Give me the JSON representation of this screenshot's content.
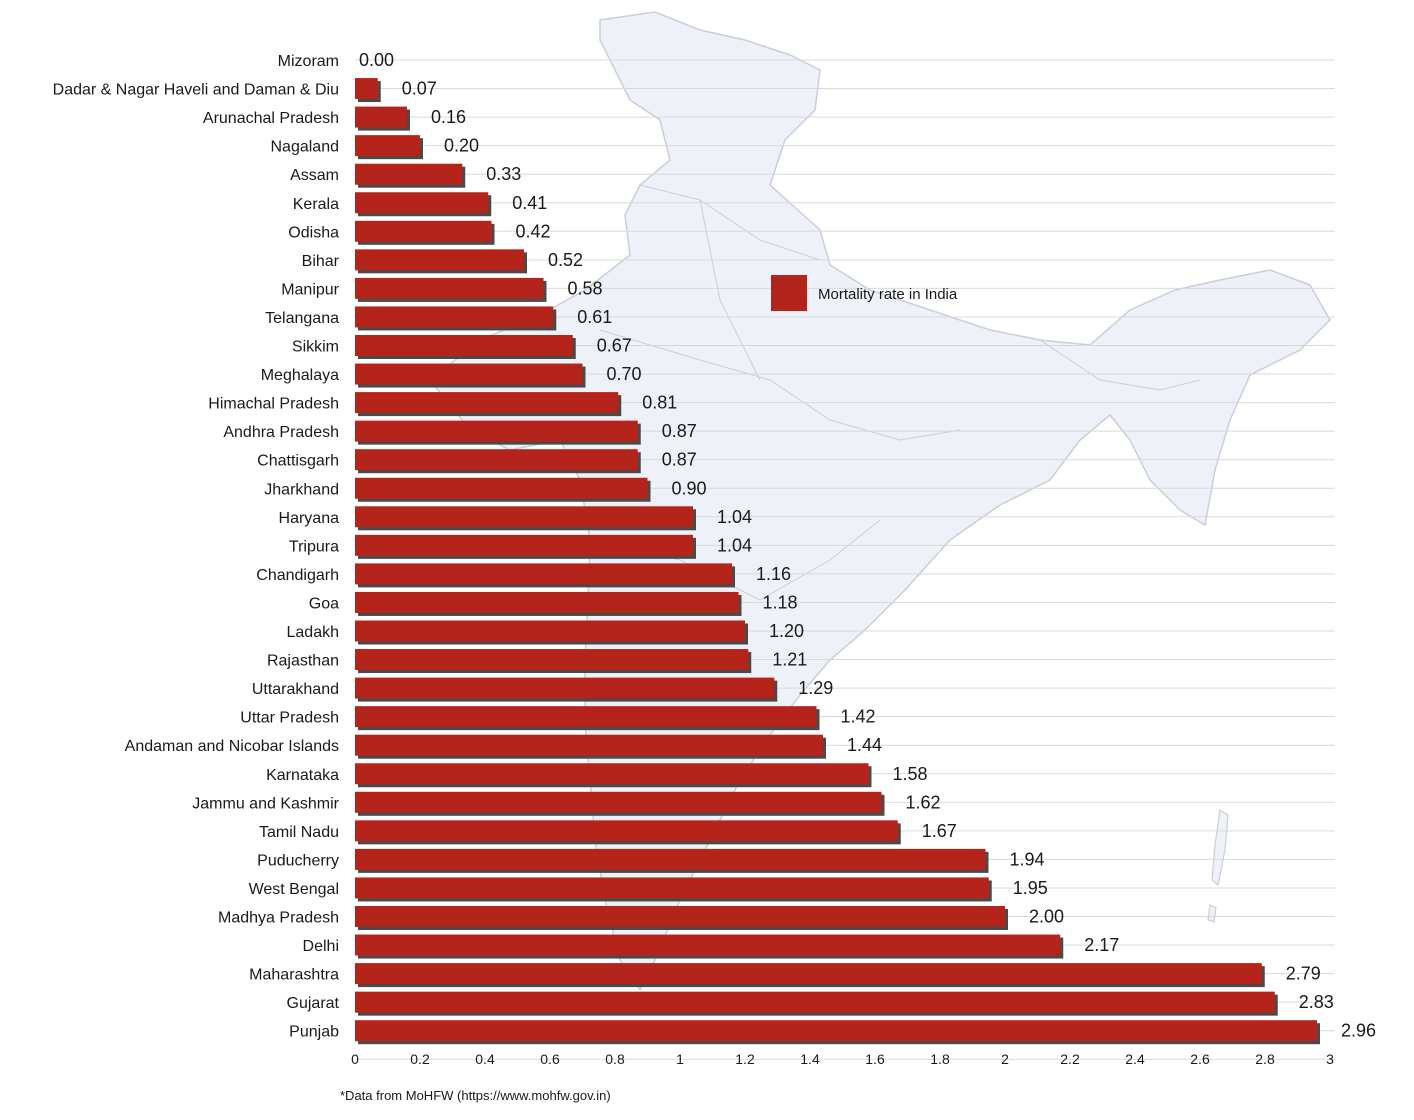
{
  "chart_data": {
    "type": "bar",
    "orientation": "horizontal",
    "categories": [
      "Mizoram",
      "Dadar & Nagar Haveli and Daman & Diu",
      "Arunachal Pradesh",
      "Nagaland",
      "Assam",
      "Kerala",
      "Odisha",
      "Bihar",
      "Manipur",
      "Telangana",
      "Sikkim",
      "Meghalaya",
      "Himachal Pradesh",
      "Andhra Pradesh",
      "Chattisgarh",
      "Jharkhand",
      "Haryana",
      "Tripura",
      "Chandigarh",
      "Goa",
      "Ladakh",
      "Rajasthan",
      "Uttarakhand",
      "Uttar Pradesh",
      "Andaman and Nicobar Islands",
      "Karnataka",
      "Jammu and Kashmir",
      "Tamil Nadu",
      "Puducherry",
      "West Bengal",
      "Madhya Pradesh",
      "Delhi",
      "Maharashtra",
      "Gujarat",
      "Punjab"
    ],
    "values": [
      0.0,
      0.07,
      0.16,
      0.2,
      0.33,
      0.41,
      0.42,
      0.52,
      0.58,
      0.61,
      0.67,
      0.7,
      0.81,
      0.87,
      0.87,
      0.9,
      1.04,
      1.04,
      1.16,
      1.18,
      1.2,
      1.21,
      1.29,
      1.42,
      1.44,
      1.58,
      1.62,
      1.67,
      1.94,
      1.95,
      2.0,
      2.17,
      2.79,
      2.83,
      2.96
    ],
    "value_labels": [
      "0.00",
      "0.07",
      "0.16",
      "0.20",
      "0.33",
      "0.41",
      "0.42",
      "0.52",
      "0.58",
      "0.61",
      "0.67",
      "0.70",
      "0.81",
      "0.87",
      "0.87",
      "0.90",
      "1.04",
      "1.04",
      "1.16",
      "1.18",
      "1.20",
      "1.21",
      "1.29",
      "1.42",
      "1.44",
      "1.58",
      "1.62",
      "1.67",
      "1.94",
      "1.95",
      "2.00",
      "2.17",
      "2.79",
      "2.83",
      "2.96"
    ],
    "xlim": [
      0,
      3
    ],
    "xticks": [
      "0",
      "0.2",
      "0.4",
      "0.6",
      "0.8",
      "1",
      "1.2",
      "1.4",
      "1.6",
      "1.8",
      "2",
      "2.2",
      "2.4",
      "2.6",
      "2.8",
      "3"
    ],
    "series": [
      {
        "name": "Mortality rate in India",
        "color": "#b5241a"
      }
    ],
    "legend_position": "upper-center",
    "grid": "horizontal",
    "background_image": "india-map"
  },
  "footnote": "*Data from MoHFW (https://www.mohfw.gov.in)",
  "colors": {
    "bar": "#b5241a",
    "bar_shadow": "#4a4a4a",
    "grid": "#d9d9d9",
    "map": "#eef1f7",
    "map_border": "#c9ced8"
  }
}
